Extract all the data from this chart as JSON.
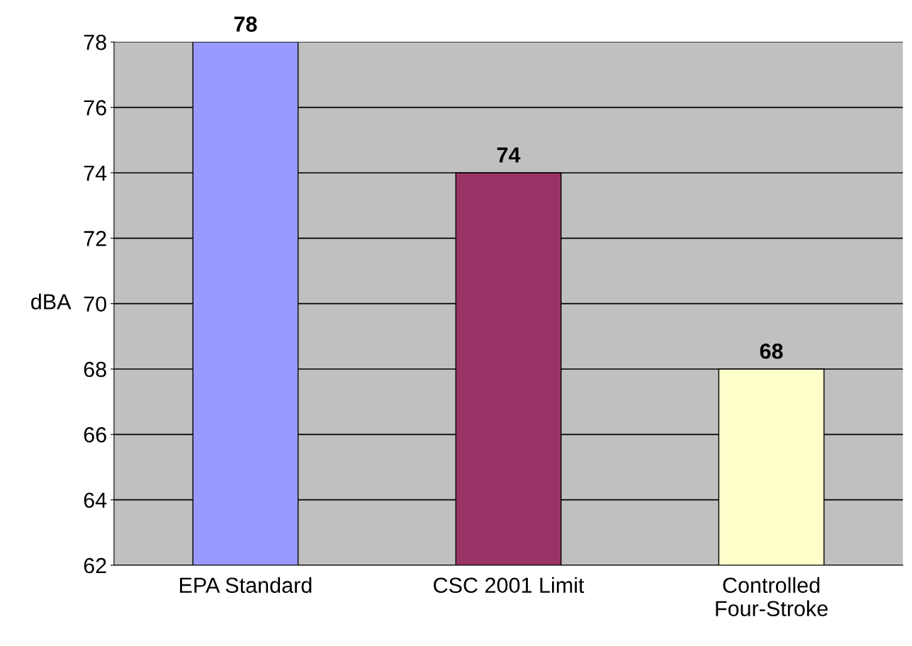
{
  "chart_data": {
    "type": "bar",
    "ylabel": "dBA",
    "categories": [
      "EPA Standard",
      "CSC 2001 Limit",
      "Controlled\nFour-Stroke"
    ],
    "values": [
      78,
      74,
      68
    ],
    "colors": [
      "#9999ff",
      "#993366",
      "#ffffcc"
    ],
    "ylim": [
      62,
      78
    ],
    "yticks": [
      62,
      64,
      66,
      68,
      70,
      72,
      74,
      76,
      78
    ],
    "grid": "y",
    "data_labels": true
  }
}
